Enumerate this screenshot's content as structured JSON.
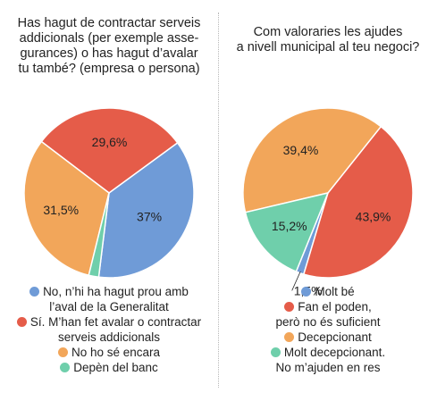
{
  "charts": [
    {
      "title_lines": [
        "Has hagut de contractar serveis",
        "addicionals (per exemple asse-",
        "gurances) o has hagut d’avalar",
        "tu també? (empresa o persona)"
      ],
      "legend": [
        {
          "lines": [
            "No, n’hi ha hagut prou amb",
            "l’aval de la Generalitat"
          ]
        },
        {
          "lines": [
            "Sí. M’han fet avalar o contractar",
            "serveis addicionals"
          ]
        },
        {
          "lines": [
            "No ho sé encara"
          ]
        },
        {
          "lines": [
            "Depèn del banc"
          ]
        }
      ]
    },
    {
      "title_lines": [
        "Com valoraries les ajudes",
        "a nivell municipal al teu negoci?"
      ],
      "legend": [
        {
          "lines": [
            "Molt bé"
          ]
        },
        {
          "lines": [
            "Fan el poden,",
            "però no és suficient"
          ]
        },
        {
          "lines": [
            "Decepcionant"
          ]
        },
        {
          "lines": [
            "Molt decepcionant.",
            "No m’ajuden en res"
          ]
        }
      ]
    }
  ],
  "chart_data": [
    {
      "type": "pie",
      "title": "Has hagut de contractar serveis addicionals (per exemple asse-gurances) o has hagut d’avalar tu també? (empresa o persona)",
      "labels": [
        "No, n’hi ha hagut prou amb l’aval de la Generalitat",
        "Sí. M’han fet avalar o contractar serveis addicionals",
        "No ho sé encara",
        "Depèn del banc"
      ],
      "values": [
        37,
        29.6,
        31.5,
        1.9
      ],
      "value_labels": [
        "37%",
        "29,6%",
        "31,5%",
        ""
      ],
      "colors": [
        "#6f9bd7",
        "#e55c49",
        "#f2a65a",
        "#6fcfab"
      ],
      "start_angle_deg": 97,
      "direction": "clockwise",
      "legend_position": "bottom"
    },
    {
      "type": "pie",
      "title": "Com valoraries les ajudes a nivell municipal al teu negoci?",
      "labels": [
        "Molt bé",
        "Fan el poden, però no és suficient",
        "Decepcionant",
        "Molt decepcionant. No m’ajuden en res"
      ],
      "values": [
        1.5,
        43.9,
        39.4,
        15.2
      ],
      "value_labels": [
        "1,5%",
        "43,9%",
        "39,4%",
        "15,2%"
      ],
      "colors": [
        "#6f9bd7",
        "#e55c49",
        "#f2a65a",
        "#6fcfab"
      ],
      "start_angle_deg": 112,
      "direction": "clockwise",
      "legend_position": "bottom"
    }
  ]
}
